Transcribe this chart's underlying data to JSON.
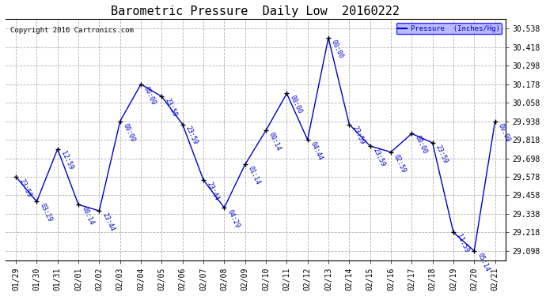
{
  "title": "Barometric Pressure  Daily Low  20160222",
  "copyright": "Copyright 2016 Cartronics.com",
  "legend_label": "Pressure  (Inches/Hg)",
  "background_color": "#ffffff",
  "plot_bg_color": "#ffffff",
  "line_color": "#0000cc",
  "grid_color": "#b0b0b0",
  "dates": [
    "01/29",
    "01/30",
    "01/31",
    "02/01",
    "02/02",
    "02/03",
    "02/04",
    "02/05",
    "02/06",
    "02/07",
    "02/08",
    "02/09",
    "02/10",
    "02/11",
    "02/12",
    "02/13",
    "02/14",
    "02/15",
    "02/16",
    "02/17",
    "02/18",
    "02/19",
    "02/20",
    "02/21"
  ],
  "values": [
    29.578,
    29.418,
    29.758,
    29.398,
    29.358,
    29.938,
    30.178,
    30.098,
    29.918,
    29.558,
    29.378,
    29.658,
    29.878,
    30.118,
    29.818,
    30.478,
    29.918,
    29.778,
    29.738,
    29.858,
    29.798,
    29.218,
    29.098,
    29.938
  ],
  "time_labels": [
    "23:59",
    "03:29",
    "12:59",
    "00:14",
    "23:44",
    "00:00",
    "00:00",
    "23:59",
    "23:59",
    "23:44",
    "04:29",
    "01:14",
    "00:14",
    "00:00",
    "04:44",
    "00:00",
    "23:59",
    "23:59",
    "02:59",
    "00:00",
    "23:59",
    "11:59",
    "05:14",
    "00:00"
  ],
  "ylim_min": 29.038,
  "ylim_max": 30.598,
  "yticks": [
    29.098,
    29.218,
    29.338,
    29.458,
    29.578,
    29.698,
    29.818,
    29.938,
    30.058,
    30.178,
    30.298,
    30.418,
    30.538
  ],
  "title_fontsize": 11,
  "tick_fontsize": 7,
  "copyright_fontsize": 6.5,
  "annot_fontsize": 6.0
}
